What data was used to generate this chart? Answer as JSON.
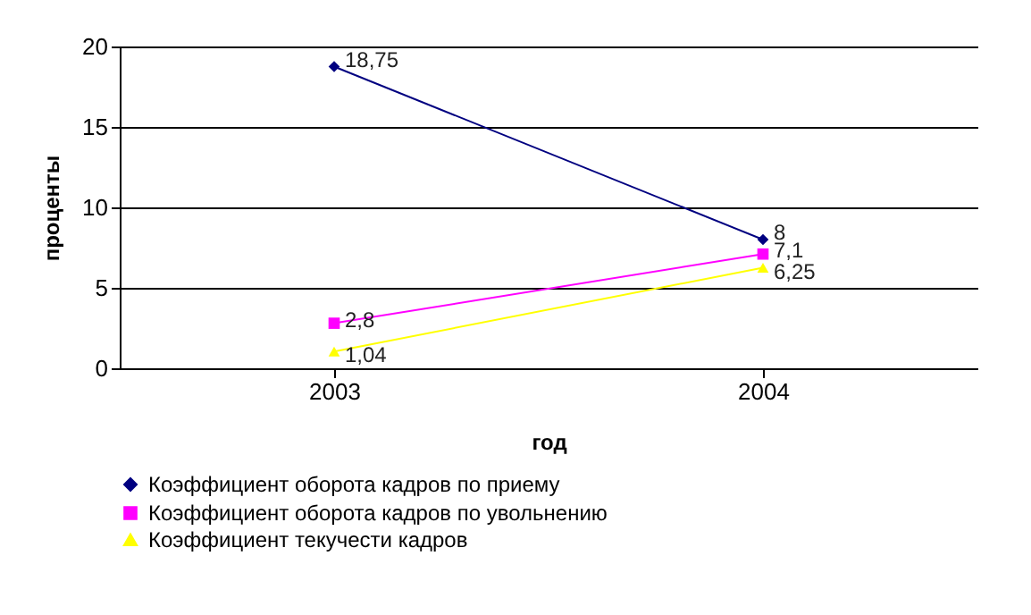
{
  "chart_data": {
    "type": "line",
    "xlabel": "год",
    "ylabel": "проценты",
    "categories": [
      "2003",
      "2004"
    ],
    "ylim": [
      0,
      20
    ],
    "yticks": [
      0,
      5,
      10,
      15,
      20
    ],
    "grid": "y",
    "legend": "bottom",
    "line_style": "solid",
    "series": [
      {
        "name": "Коэффициент оборота кадров по приему",
        "color": "#000080",
        "marker": "diamond",
        "values": [
          18.75,
          8
        ],
        "value_labels": [
          "18,75",
          "8"
        ]
      },
      {
        "name": "Коэффициент оборота кадров по увольнению",
        "color": "#ff00ff",
        "marker": "square",
        "values": [
          2.8,
          7.1
        ],
        "value_labels": [
          "2,8",
          "7,1"
        ]
      },
      {
        "name": "Коэффициент текучести кадров",
        "color": "#ffff00",
        "marker": "triangle",
        "values": [
          1.04,
          6.25
        ],
        "value_labels": [
          "1,04",
          "6,25"
        ]
      }
    ]
  }
}
